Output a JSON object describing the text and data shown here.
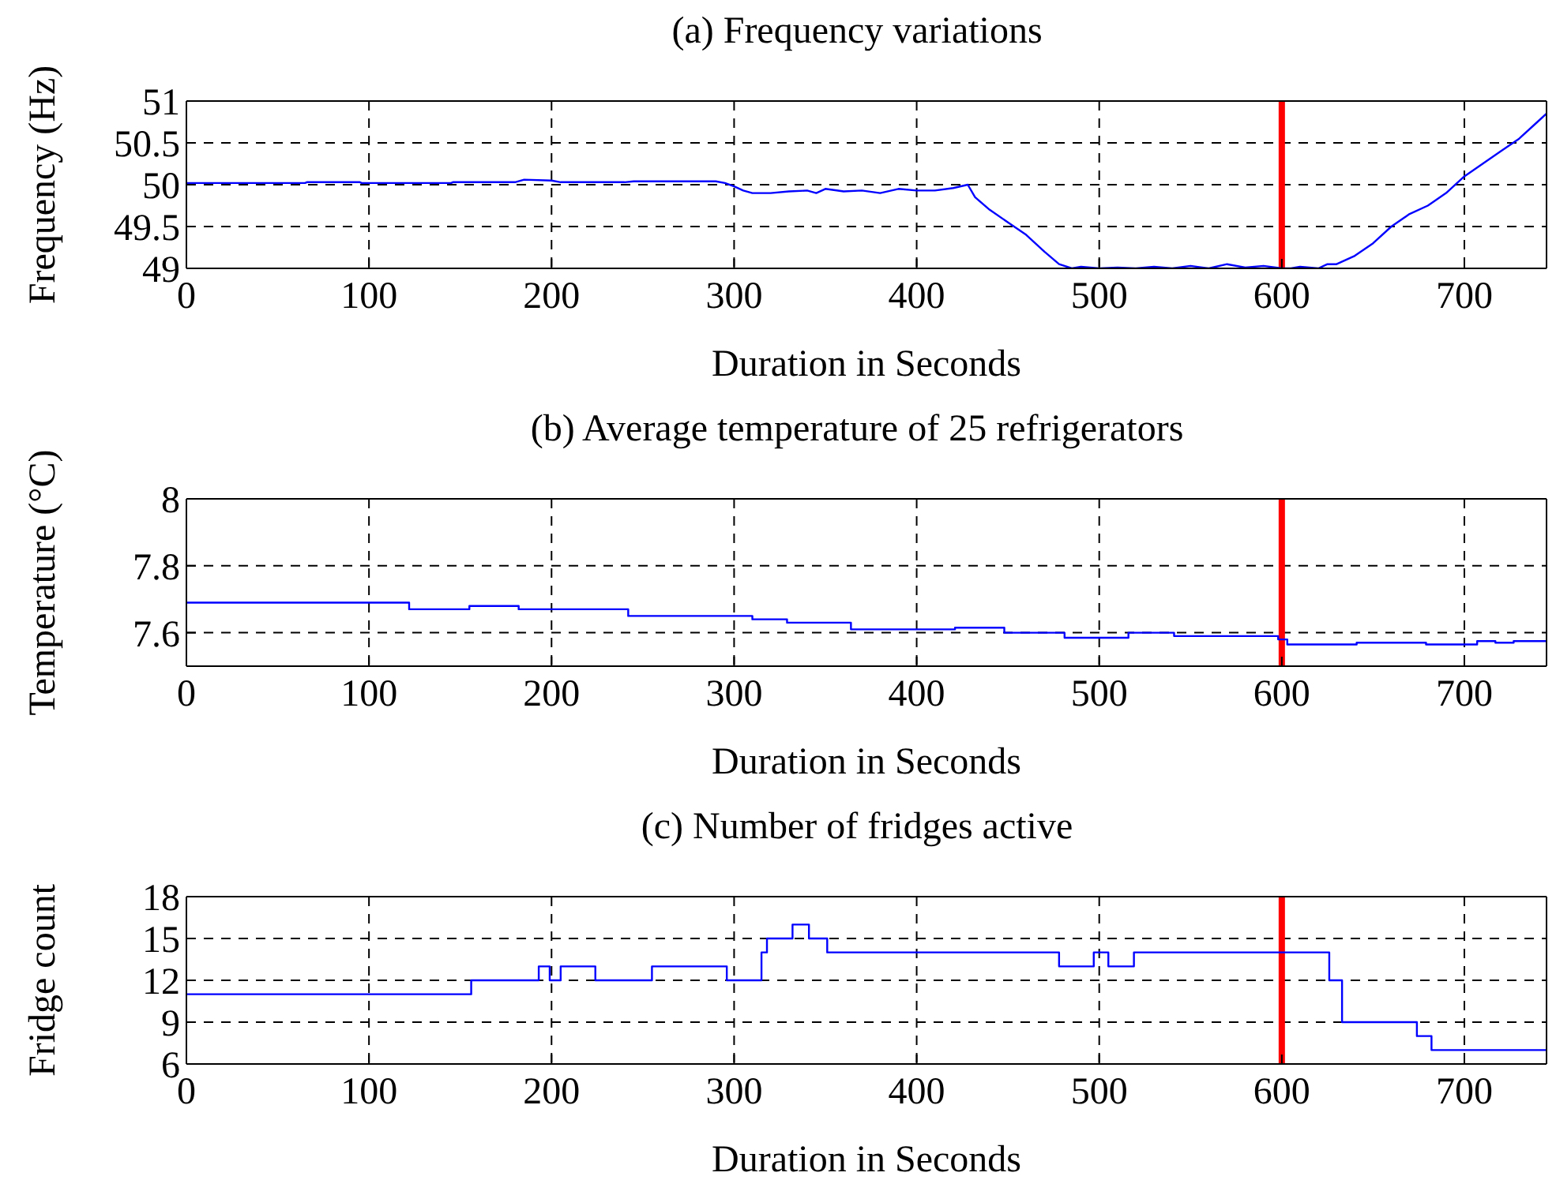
{
  "chart_data": [
    {
      "type": "line",
      "title": "(a) Frequency variations",
      "xlabel": "Duration in Seconds",
      "ylabel": "Frequency (Hz)",
      "color": "#0000ff",
      "xlim": [
        0,
        745
      ],
      "xticks": [
        0,
        100,
        200,
        300,
        400,
        500,
        600,
        700
      ],
      "ylim": [
        49,
        51
      ],
      "yticks": [
        49,
        49.5,
        50,
        50.5,
        51
      ],
      "grid": true,
      "ref_lines": [
        {
          "axis": "x",
          "value": 600,
          "color": "#ff0000"
        }
      ],
      "x": [
        0,
        65,
        66,
        95,
        96,
        145,
        146,
        180,
        185,
        200,
        205,
        240,
        245,
        290,
        295,
        300,
        305,
        310,
        320,
        330,
        340,
        345,
        350,
        360,
        370,
        380,
        390,
        400,
        410,
        420,
        428,
        432,
        440,
        450,
        460,
        470,
        478,
        485,
        490,
        500,
        510,
        520,
        530,
        540,
        550,
        560,
        570,
        580,
        590,
        600,
        605,
        610,
        620,
        625,
        630,
        640,
        650,
        660,
        670,
        680,
        690,
        700,
        710,
        720,
        730,
        740,
        745
      ],
      "values": [
        50.02,
        50.02,
        50.03,
        50.03,
        50.02,
        50.02,
        50.03,
        50.03,
        50.06,
        50.05,
        50.03,
        50.03,
        50.04,
        50.04,
        50.02,
        49.98,
        49.93,
        49.9,
        49.9,
        49.92,
        49.93,
        49.9,
        49.95,
        49.92,
        49.93,
        49.9,
        49.95,
        49.93,
        49.93,
        49.96,
        50.0,
        49.85,
        49.7,
        49.55,
        49.4,
        49.2,
        49.05,
        49.0,
        49.02,
        49.0,
        49.01,
        49.0,
        49.02,
        49.0,
        49.03,
        49.0,
        49.05,
        49.01,
        49.03,
        49.0,
        49.0,
        49.02,
        49.0,
        49.05,
        49.05,
        49.15,
        49.3,
        49.5,
        49.65,
        49.75,
        49.9,
        50.1,
        50.25,
        50.4,
        50.55,
        50.75,
        50.85
      ]
    },
    {
      "type": "step",
      "title": "(b) Average temperature of 25 refrigerators",
      "xlabel": "Duration in Seconds",
      "ylabel": "Temperature (°C)",
      "color": "#0000ff",
      "xlim": [
        0,
        745
      ],
      "xticks": [
        0,
        100,
        200,
        300,
        400,
        500,
        600,
        700
      ],
      "ylim": [
        7.5,
        8
      ],
      "yticks": [
        7.6,
        7.8,
        8
      ],
      "grid": true,
      "ref_lines": [
        {
          "axis": "x",
          "value": 600,
          "color": "#ff0000"
        }
      ],
      "x": [
        0,
        122,
        155,
        182,
        198,
        242,
        310,
        329,
        364,
        421,
        448,
        481,
        516,
        541,
        598,
        603,
        641,
        679,
        707,
        717,
        727,
        745
      ],
      "values": [
        7.69,
        7.67,
        7.68,
        7.67,
        7.67,
        7.65,
        7.64,
        7.63,
        7.61,
        7.615,
        7.6,
        7.585,
        7.6,
        7.59,
        7.58,
        7.565,
        7.57,
        7.565,
        7.575,
        7.57,
        7.575,
        7.575
      ]
    },
    {
      "type": "step",
      "title": "(c) Number of fridges active",
      "xlabel": "Duration in Seconds",
      "ylabel": "Fridge count",
      "color": "#0000ff",
      "xlim": [
        0,
        745
      ],
      "xticks": [
        0,
        100,
        200,
        300,
        400,
        500,
        600,
        700
      ],
      "ylim": [
        6,
        18
      ],
      "yticks": [
        6,
        9,
        12,
        15,
        18
      ],
      "grid": true,
      "ref_lines": [
        {
          "axis": "x",
          "value": 600,
          "color": "#ff0000"
        }
      ],
      "x": [
        0,
        156,
        193,
        199,
        205,
        224,
        255,
        296,
        315,
        318,
        332,
        341,
        351,
        478,
        497,
        505,
        519,
        626,
        633,
        674,
        682,
        745
      ],
      "values": [
        11,
        12,
        13,
        12,
        13,
        12,
        13,
        12,
        14,
        15,
        16,
        15,
        14,
        13,
        14,
        13,
        14,
        12,
        9,
        8,
        7,
        7
      ]
    }
  ]
}
